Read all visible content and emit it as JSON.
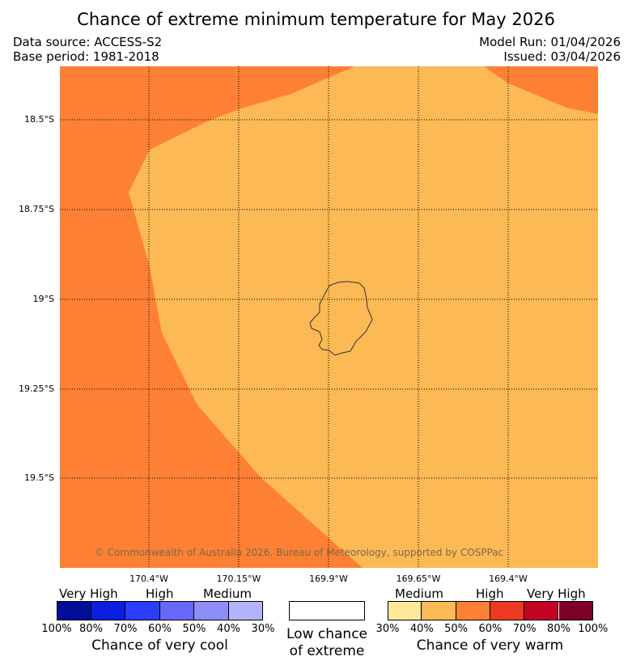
{
  "title": "Chance of extreme minimum temperature for May 2026",
  "meta": {
    "data_source": "Data source: ACCESS-S2",
    "base_period": "Base period: 1981-2018",
    "model_run": "Model Run: 01/04/2026",
    "issued": "Issued: 03/04/2026"
  },
  "map": {
    "lat_ticks": [
      "18.5°S",
      "18.75°S",
      "19°S",
      "19.25°S",
      "19.5°S"
    ],
    "lon_ticks": [
      "170.4°W",
      "170.15°W",
      "169.9°W",
      "169.65°W",
      "169.4°W"
    ],
    "copyright": "© Commonwealth of Australia 2026, Bureau of Meteorology, supported by COSPPac",
    "colors": {
      "high_warm": "#fd8034",
      "medium_warm": "#fcb954",
      "coast": "#333333"
    }
  },
  "legend": {
    "cool": {
      "levels": [
        "Very High",
        "High",
        "Medium"
      ],
      "colors": [
        "#000e99",
        "#0a1fe0",
        "#2c3dfc",
        "#6767fb",
        "#8d8dfa",
        "#b3b3fb"
      ],
      "ticks": [
        "100%",
        "80%",
        "70%",
        "60%",
        "50%",
        "40%",
        "30%"
      ],
      "caption": "Chance of very cool"
    },
    "neutral": {
      "caption_line1": "Low chance",
      "caption_line2": "of extreme"
    },
    "warm": {
      "levels": [
        "Medium",
        "High",
        "Very High"
      ],
      "colors": [
        "#fde99a",
        "#fcb954",
        "#fd8034",
        "#ec3a22",
        "#c40422",
        "#7f0026"
      ],
      "ticks": [
        "30%",
        "40%",
        "50%",
        "60%",
        "70%",
        "80%",
        "100%"
      ],
      "caption": "Chance of very warm"
    }
  }
}
